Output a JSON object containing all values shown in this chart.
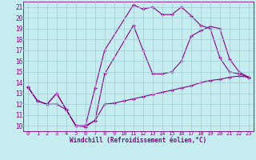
{
  "xlabel": "Windchill (Refroidissement éolien,°C)",
  "bg_color": "#c5edf0",
  "line_color": "#880088",
  "grid_color": "#9ecdd4",
  "xlim": [
    -0.5,
    23.5
  ],
  "ylim": [
    9.5,
    21.5
  ],
  "xticks": [
    0,
    1,
    2,
    3,
    4,
    5,
    6,
    7,
    8,
    9,
    10,
    11,
    12,
    13,
    14,
    15,
    16,
    17,
    18,
    19,
    20,
    21,
    22,
    23
  ],
  "yticks": [
    10,
    11,
    12,
    13,
    14,
    15,
    16,
    17,
    18,
    19,
    20,
    21
  ],
  "line1_x": [
    0,
    1,
    2,
    3,
    4,
    5,
    6,
    7,
    8,
    11,
    12,
    13,
    14,
    15,
    16,
    17,
    18,
    19,
    20,
    21,
    22,
    23
  ],
  "line1_y": [
    13.6,
    12.3,
    12.0,
    13.0,
    11.5,
    10.0,
    10.0,
    13.5,
    17.0,
    21.2,
    20.8,
    21.0,
    20.3,
    20.3,
    21.0,
    20.2,
    19.3,
    19.0,
    16.3,
    15.0,
    14.8,
    14.5
  ],
  "line2_x": [
    0,
    1,
    2,
    3,
    4,
    5,
    6,
    7,
    8,
    11,
    12,
    13,
    14,
    15,
    16,
    17,
    18,
    19,
    20,
    21,
    22,
    23
  ],
  "line2_y": [
    13.6,
    12.3,
    12.0,
    13.0,
    11.5,
    10.0,
    10.0,
    10.5,
    14.8,
    19.3,
    17.0,
    14.8,
    14.8,
    15.0,
    16.0,
    18.3,
    18.8,
    19.2,
    19.0,
    16.2,
    15.0,
    14.5
  ],
  "line3_x": [
    0,
    1,
    2,
    3,
    4,
    5,
    6,
    7,
    8,
    9,
    10,
    11,
    12,
    13,
    14,
    15,
    16,
    17,
    18,
    19,
    20,
    21,
    22,
    23
  ],
  "line3_y": [
    13.6,
    12.3,
    12.0,
    12.0,
    11.5,
    10.0,
    9.9,
    10.5,
    12.0,
    12.1,
    12.3,
    12.5,
    12.7,
    12.9,
    13.1,
    13.3,
    13.5,
    13.7,
    14.0,
    14.2,
    14.3,
    14.5,
    14.6,
    14.5
  ]
}
